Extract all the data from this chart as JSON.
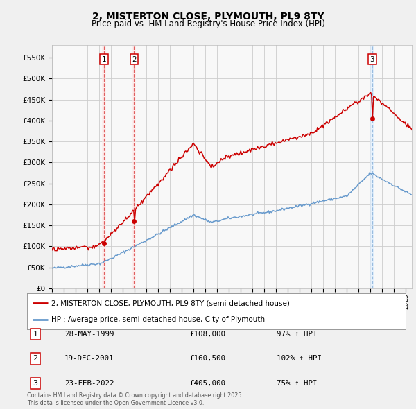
{
  "title": "2, MISTERTON CLOSE, PLYMOUTH, PL9 8TY",
  "subtitle": "Price paid vs. HM Land Registry's House Price Index (HPI)",
  "legend_label_red": "2, MISTERTON CLOSE, PLYMOUTH, PL9 8TY (semi-detached house)",
  "legend_label_blue": "HPI: Average price, semi-detached house, City of Plymouth",
  "footer": "Contains HM Land Registry data © Crown copyright and database right 2025.\nThis data is licensed under the Open Government Licence v3.0.",
  "transactions": [
    {
      "label": "1",
      "date": "28-MAY-1999",
      "price": "£108,000",
      "hpi_pct": "97% ↑ HPI",
      "year": 1999.4
    },
    {
      "label": "2",
      "date": "19-DEC-2001",
      "price": "£160,500",
      "hpi_pct": "102% ↑ HPI",
      "year": 2001.96
    },
    {
      "label": "3",
      "date": "23-FEB-2022",
      "price": "£405,000",
      "hpi_pct": "75% ↑ HPI",
      "year": 2022.14
    }
  ],
  "trans_values": [
    108000,
    160500,
    405000
  ],
  "ylim": [
    0,
    580000
  ],
  "xlim": [
    1995.0,
    2025.5
  ],
  "yticks": [
    0,
    50000,
    100000,
    150000,
    200000,
    250000,
    300000,
    350000,
    400000,
    450000,
    500000,
    550000
  ],
  "ytick_labels": [
    "£0",
    "£50K",
    "£100K",
    "£150K",
    "£200K",
    "£250K",
    "£300K",
    "£350K",
    "£400K",
    "£450K",
    "£500K",
    "£550K"
  ],
  "red_color": "#cc0000",
  "blue_color": "#6699cc",
  "bg_color": "#f0f0f0",
  "plot_bg_color": "#f8f8f8",
  "grid_color": "#cccccc",
  "shade_red": "#ffe8e8",
  "shade_blue": "#ddeeff",
  "title_fontsize": 10,
  "subtitle_fontsize": 8.5
}
